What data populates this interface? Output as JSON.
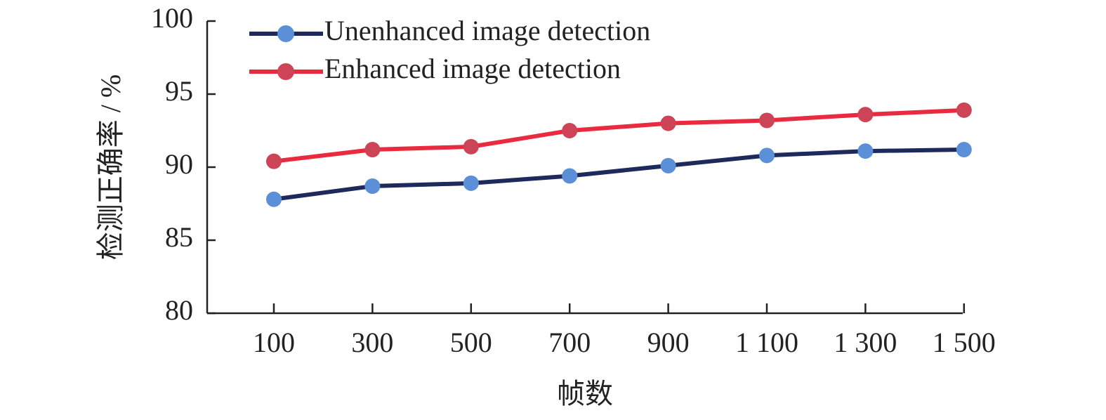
{
  "chart_data": {
    "type": "line",
    "x_label": "帧数",
    "y_label": "检测正确率 / %",
    "categories": [
      "100",
      "300",
      "500",
      "700",
      "900",
      "1 100",
      "1 300",
      "1 500"
    ],
    "series": [
      {
        "name": "Unenhanced image detection",
        "color": "#1f2a5c",
        "marker_color": "#5b8fd8",
        "values": [
          87.8,
          88.7,
          88.9,
          89.4,
          90.1,
          90.8,
          91.1,
          91.2
        ]
      },
      {
        "name": "Enhanced image detection",
        "color": "#ea2a3e",
        "marker_color": "#cc4456",
        "values": [
          90.4,
          91.2,
          91.4,
          92.5,
          93.0,
          93.2,
          93.6,
          93.9
        ]
      }
    ],
    "ylim": [
      80,
      100
    ],
    "yticks": [
      80,
      85,
      90,
      95,
      100
    ],
    "grid": false
  }
}
